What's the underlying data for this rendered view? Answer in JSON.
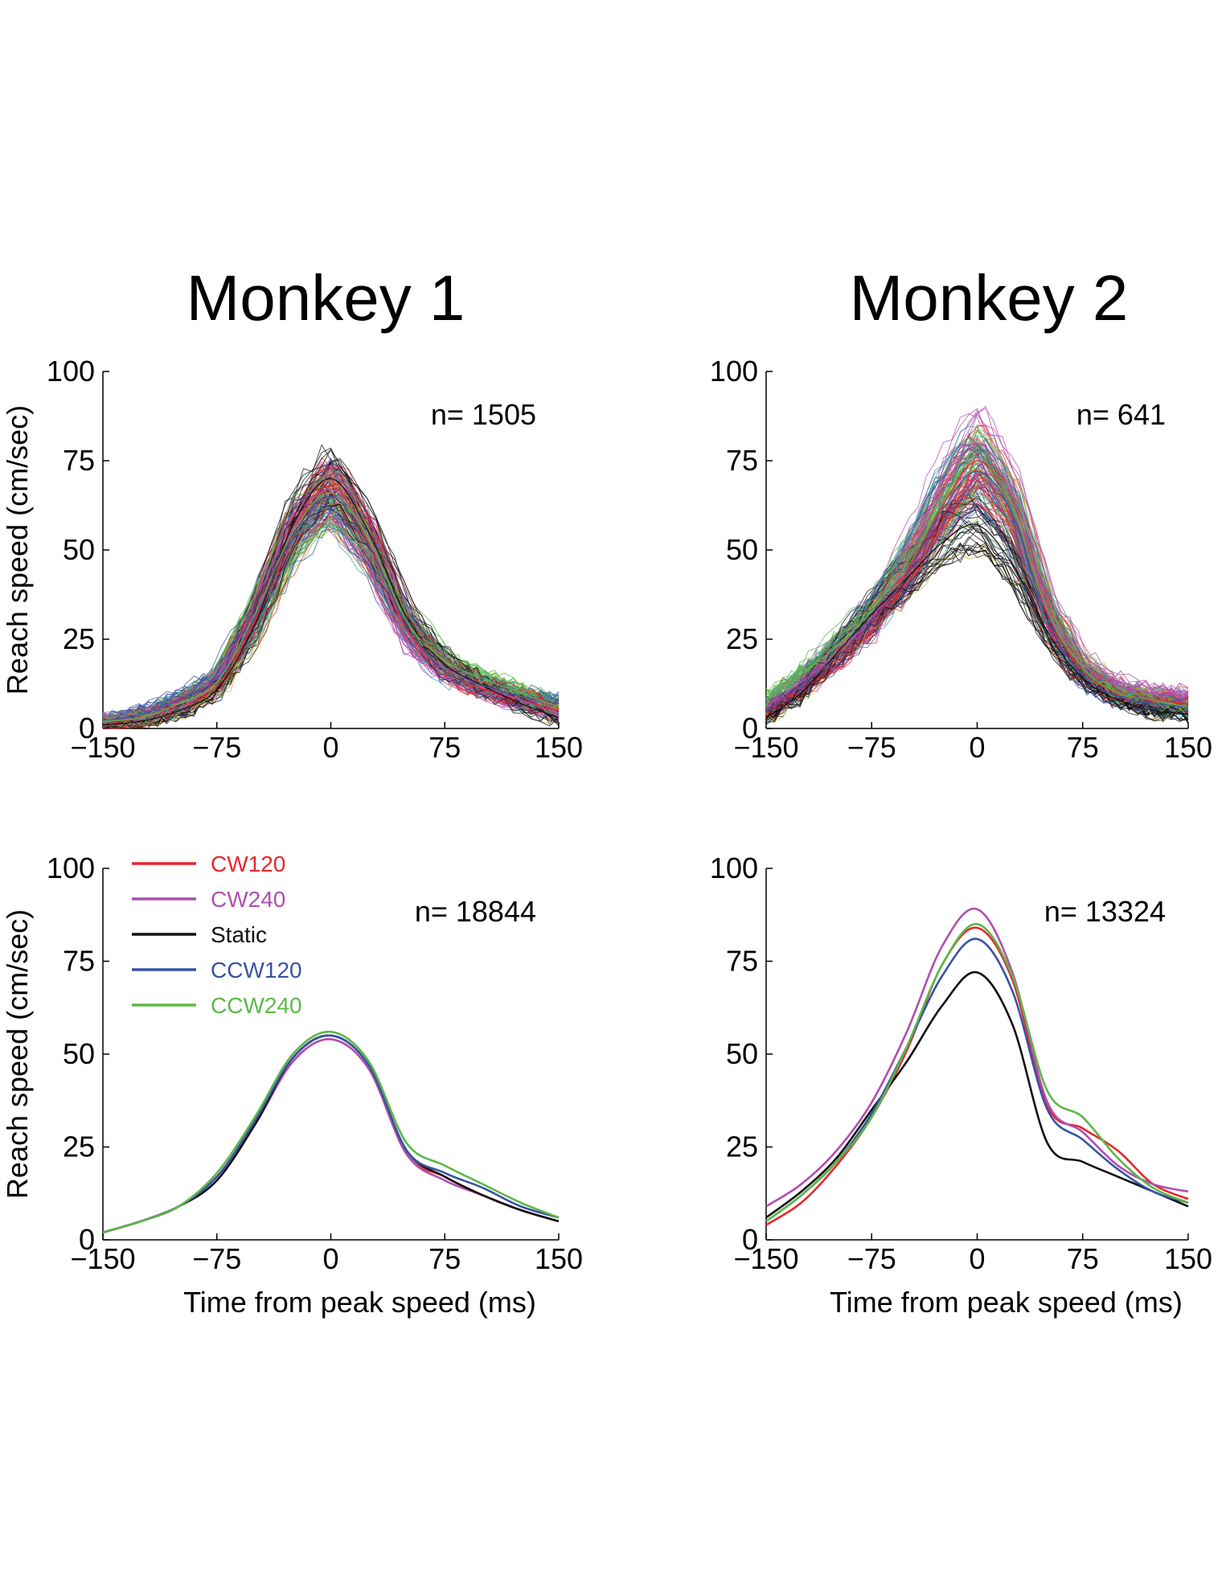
{
  "columns": [
    {
      "title": "Monkey 1"
    },
    {
      "title": "Monkey 2"
    }
  ],
  "colors": {
    "CW120": "#e8262b",
    "CW240": "#b04fb0",
    "Static": "#111111",
    "CCW120": "#3853a4",
    "CCW240": "#5cb848",
    "extra_trial_1": "#d6b73a",
    "extra_trial_2": "#31a9a1"
  },
  "chart_data": [
    {
      "type": "line",
      "panel": "top-left",
      "n_label": "n= 1505",
      "xlabel": "",
      "ylabel": "Reach speed (cm/sec)",
      "xlim": [
        -150,
        150
      ],
      "ylim": [
        0,
        100
      ],
      "xticks": [
        -150,
        -75,
        0,
        75,
        150
      ],
      "yticks": [
        0,
        25,
        50,
        75,
        100
      ],
      "xtick_labels": [
        "−150",
        "−75",
        "0",
        "75",
        "150"
      ],
      "ytick_labels": [
        "0",
        "25",
        "50",
        "75",
        "100"
      ],
      "x": [
        -150,
        -125,
        -100,
        -75,
        -50,
        -25,
        0,
        25,
        50,
        75,
        100,
        125,
        150
      ],
      "series": [
        {
          "color": "CW120",
          "values": [
            1,
            3,
            6,
            12,
            30,
            55,
            68,
            52,
            28,
            16,
            11,
            8,
            5
          ]
        },
        {
          "color": "CW240",
          "values": [
            2,
            3,
            6,
            13,
            31,
            56,
            67,
            53,
            27,
            17,
            12,
            8,
            4
          ]
        },
        {
          "color": "Static",
          "values": [
            1,
            2,
            5,
            11,
            29,
            57,
            70,
            55,
            31,
            18,
            12,
            7,
            3
          ]
        },
        {
          "color": "CCW120",
          "values": [
            2,
            4,
            8,
            14,
            31,
            54,
            65,
            51,
            29,
            16,
            12,
            9,
            7
          ]
        },
        {
          "color": "CCW240",
          "values": [
            2,
            3,
            7,
            13,
            32,
            55,
            66,
            53,
            30,
            19,
            14,
            10,
            6
          ]
        }
      ]
    },
    {
      "type": "line",
      "panel": "top-right",
      "n_label": "n= 641",
      "xlabel": "",
      "ylabel": "",
      "xlim": [
        -150,
        150
      ],
      "ylim": [
        0,
        100
      ],
      "xticks": [
        -150,
        -75,
        0,
        75,
        150
      ],
      "yticks": [
        0,
        25,
        50,
        75,
        100
      ],
      "xtick_labels": [
        "−150",
        "−75",
        "0",
        "75",
        "150"
      ],
      "ytick_labels": [
        "0",
        "25",
        "50",
        "75",
        "100"
      ],
      "x": [
        -150,
        -125,
        -100,
        -75,
        -50,
        -25,
        0,
        25,
        50,
        75,
        100,
        125,
        150
      ],
      "series": [
        {
          "color": "CW120",
          "values": [
            5,
            12,
            20,
            30,
            44,
            62,
            75,
            62,
            32,
            16,
            10,
            8,
            7
          ]
        },
        {
          "color": "CW240",
          "values": [
            6,
            13,
            21,
            31,
            46,
            66,
            80,
            65,
            34,
            18,
            12,
            10,
            9
          ]
        },
        {
          "color": "Static",
          "values": [
            3,
            10,
            21,
            32,
            42,
            52,
            57,
            46,
            27,
            14,
            8,
            5,
            4
          ]
        },
        {
          "color": "CCW120",
          "values": [
            5,
            12,
            20,
            30,
            43,
            61,
            72,
            60,
            30,
            15,
            9,
            7,
            6
          ]
        },
        {
          "color": "CCW240",
          "values": [
            8,
            15,
            23,
            33,
            46,
            63,
            76,
            62,
            33,
            17,
            10,
            8,
            6
          ]
        }
      ]
    },
    {
      "type": "line",
      "panel": "bottom-left",
      "n_label": "n= 18844",
      "xlabel": "Time from peak speed (ms)",
      "ylabel": "Reach speed (cm/sec)",
      "xlim": [
        -150,
        150
      ],
      "ylim": [
        0,
        100
      ],
      "xticks": [
        -150,
        -75,
        0,
        75,
        150
      ],
      "yticks": [
        0,
        25,
        50,
        75,
        100
      ],
      "xtick_labels": [
        "−150",
        "−75",
        "0",
        "75",
        "150"
      ],
      "ytick_labels": [
        "0",
        "25",
        "50",
        "75",
        "100"
      ],
      "legend": [
        "CW120",
        "CW240",
        "Static",
        "CCW120",
        "CCW240"
      ],
      "legend_position": "top-left",
      "x": [
        -150,
        -125,
        -100,
        -75,
        -50,
        -25,
        0,
        25,
        50,
        75,
        100,
        125,
        150
      ],
      "series": [
        {
          "name": "CW120",
          "values": [
            2,
            5,
            9,
            17,
            31,
            48,
            54,
            46,
            23,
            17,
            12,
            8,
            5
          ]
        },
        {
          "name": "CW240",
          "values": [
            2,
            5,
            9,
            17,
            31,
            48,
            54,
            46,
            23,
            16,
            12,
            8,
            5
          ]
        },
        {
          "name": "Static",
          "values": [
            2,
            5,
            9,
            16,
            31,
            49,
            55,
            47,
            24,
            17,
            12,
            8,
            5
          ]
        },
        {
          "name": "CCW120",
          "values": [
            2,
            5,
            9,
            17,
            32,
            49,
            55,
            47,
            24,
            18,
            14,
            9,
            6
          ]
        },
        {
          "name": "CCW240",
          "values": [
            2,
            5,
            9,
            18,
            33,
            50,
            56,
            48,
            26,
            20,
            15,
            10,
            6
          ]
        }
      ]
    },
    {
      "type": "line",
      "panel": "bottom-right",
      "n_label": "n= 13324",
      "xlabel": "Time from peak speed (ms)",
      "ylabel": "",
      "xlim": [
        -150,
        150
      ],
      "ylim": [
        0,
        100
      ],
      "xticks": [
        -150,
        -75,
        0,
        75,
        150
      ],
      "yticks": [
        0,
        25,
        50,
        75,
        100
      ],
      "xtick_labels": [
        "−150",
        "−75",
        "0",
        "75",
        "150"
      ],
      "ytick_labels": [
        "0",
        "25",
        "50",
        "75",
        "100"
      ],
      "x": [
        -150,
        -125,
        -100,
        -75,
        -50,
        -25,
        0,
        25,
        50,
        75,
        100,
        125,
        150
      ],
      "series": [
        {
          "name": "CW120",
          "values": [
            4,
            10,
            20,
            33,
            51,
            74,
            84,
            70,
            36,
            30,
            24,
            15,
            11
          ]
        },
        {
          "name": "CW240",
          "values": [
            9,
            15,
            24,
            37,
            56,
            79,
            89,
            72,
            37,
            29,
            20,
            15,
            13
          ]
        },
        {
          "name": "Static",
          "values": [
            6,
            13,
            22,
            35,
            48,
            63,
            72,
            58,
            26,
            21,
            17,
            13,
            9
          ]
        },
        {
          "name": "CCW120",
          "values": [
            5,
            12,
            21,
            34,
            52,
            71,
            81,
            67,
            35,
            27,
            19,
            13,
            10
          ]
        },
        {
          "name": "CCW240",
          "values": [
            5,
            12,
            21,
            33,
            52,
            74,
            85,
            71,
            40,
            33,
            22,
            14,
            10
          ]
        }
      ]
    }
  ]
}
